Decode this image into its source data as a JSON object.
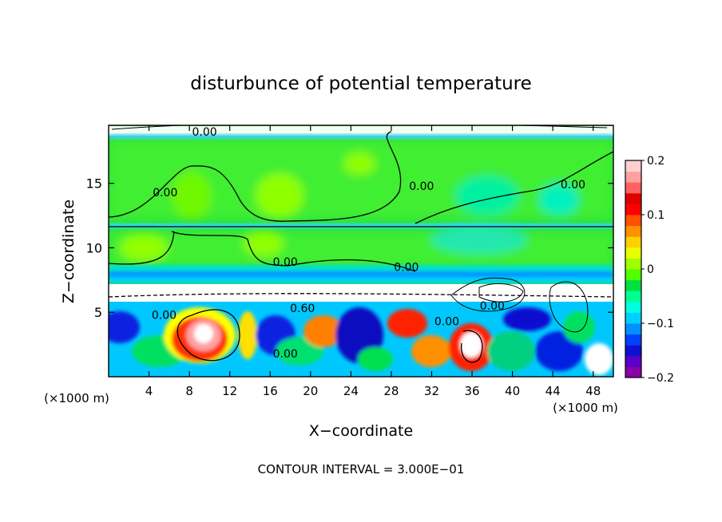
{
  "chart_data": {
    "type": "heatmap",
    "title": "disturbunce of potential temperature",
    "xlabel": "X−coordinate",
    "ylabel": "Z−coordinate",
    "x_unit_left": "(×1000 m)",
    "x_unit_right": "(×1000 m)",
    "footer": "CONTOUR INTERVAL = 3.000E−01",
    "xlim": [
      0,
      50
    ],
    "ylim": [
      0,
      19.5
    ],
    "x_ticks": [
      4,
      8,
      12,
      16,
      20,
      24,
      28,
      32,
      36,
      40,
      44,
      48
    ],
    "y_ticks": [
      5,
      10,
      15
    ],
    "colorbar": {
      "range": [
        -0.2,
        0.2
      ],
      "tick_values": [
        0.2,
        0.1,
        0,
        -0.1,
        -0.2
      ],
      "tick_labels": [
        "0.2",
        "0.1",
        "0",
        "−0.1",
        "−0.2"
      ],
      "colors": [
        "#8a00a8",
        "#5a00c8",
        "#1010d0",
        "#0040ff",
        "#0090ff",
        "#00d0ff",
        "#00ffe0",
        "#00ff90",
        "#00e040",
        "#50ff00",
        "#a0ff00",
        "#e8ff00",
        "#ffd000",
        "#ff9000",
        "#ff5000",
        "#ff0000",
        "#e00000",
        "#ff6060",
        "#ffa0a0",
        "#ffd0d0"
      ]
    },
    "contour_labels": [
      {
        "text": "0.00",
        "x": 9.5,
        "z": 18.7
      },
      {
        "text": "0.00",
        "x": 5.6,
        "z": 14.0
      },
      {
        "text": "0.00",
        "x": 31.0,
        "z": 14.5
      },
      {
        "text": "0.00",
        "x": 46.0,
        "z": 14.6
      },
      {
        "text": "0.00",
        "x": 17.5,
        "z": 8.6
      },
      {
        "text": "0.00",
        "x": 29.5,
        "z": 8.2
      },
      {
        "text": "0.00",
        "x": 5.5,
        "z": 4.5
      },
      {
        "text": "0.60",
        "x": 19.2,
        "z": 5.0
      },
      {
        "text": "0.00",
        "x": 17.5,
        "z": 1.5
      },
      {
        "text": "0.00",
        "x": 38.0,
        "z": 5.2
      },
      {
        "text": "0.00",
        "x": 33.5,
        "z": 4.0
      }
    ]
  }
}
